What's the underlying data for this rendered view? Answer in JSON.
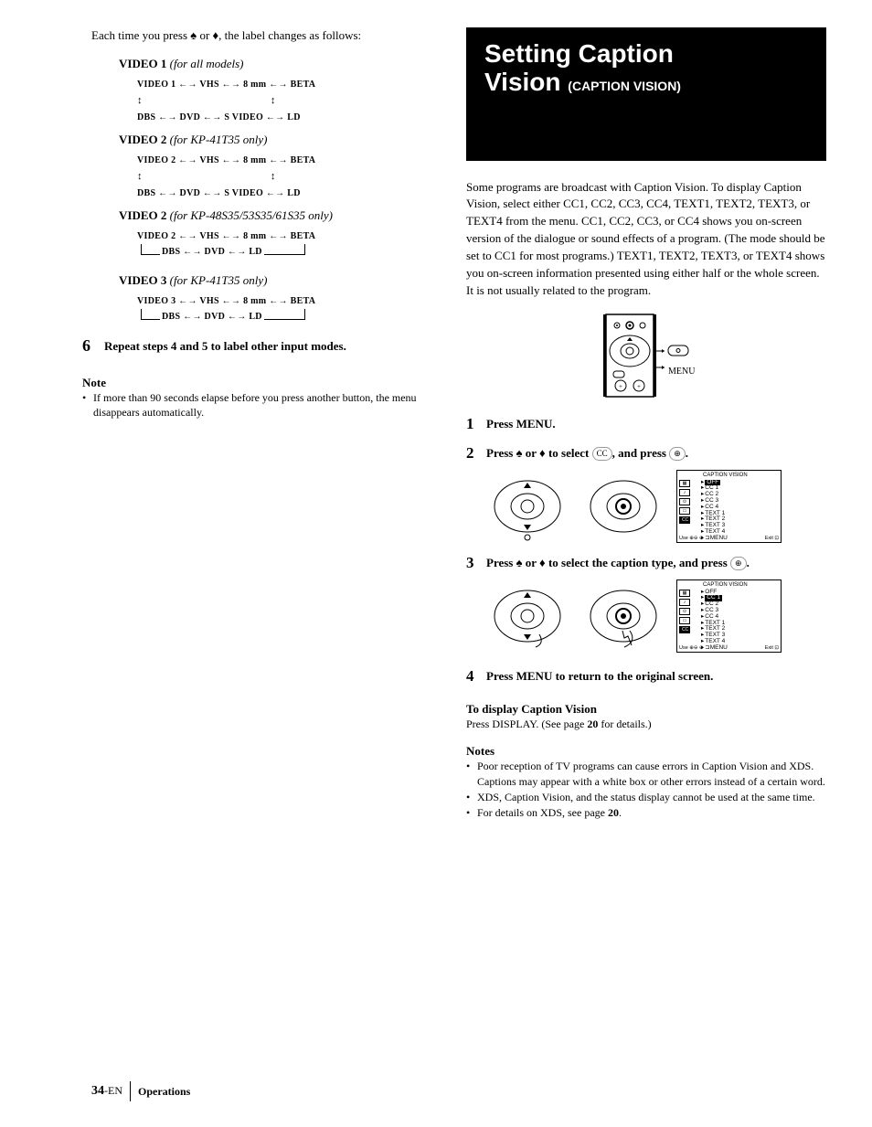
{
  "left": {
    "intro": "Each time you press ♠ or ♦, the label changes as follows:",
    "video1": {
      "heading": "VIDEO 1",
      "models": "(for all models)",
      "row1": "VIDEO 1 ←→ VHS ←→ 8 mm ←→ BETA",
      "row2": "DBS ←→ DVD ←→ S VIDEO ←→ LD"
    },
    "video2a": {
      "heading": "VIDEO 2",
      "models": "(for KP-41T35 only)",
      "row1": "VIDEO 2 ←→ VHS ←→ 8 mm ←→ BETA",
      "row2": "DBS ←→ DVD ←→ S VIDEO ←→ LD"
    },
    "video2b": {
      "heading": "VIDEO 2",
      "models": "(for KP-48S35/53S35/61S35 only)",
      "row1": "VIDEO 2 ←→ VHS ←→ 8 mm ←→ BETA",
      "row2": "DBS ←→ DVD ←→ LD"
    },
    "video3": {
      "heading": "VIDEO 3",
      "models": "(for KP-41T35 only)",
      "row1": "VIDEO 3 ←→ VHS ←→ 8 mm ←→ BETA",
      "row2": "DBS ←→ DVD ←→ LD"
    },
    "step6": {
      "num": "6",
      "text": "Repeat steps 4 and 5 to label other input modes."
    },
    "note_h": "Note",
    "note1": "If more than 90 seconds elapse before you press another button, the menu disappears automatically."
  },
  "right": {
    "title1": "Setting Caption",
    "title2a": "Vision",
    "title2b": "(CAPTION VISION)",
    "para": "Some programs are broadcast with Caption Vision. To display Caption Vision, select either CC1, CC2, CC3, CC4, TEXT1, TEXT2, TEXT3, or TEXT4 from the menu. CC1, CC2, CC3, or CC4 shows you on-screen version of the dialogue or sound effects of a program. (The mode should be set to CC1 for most programs.) TEXT1, TEXT2, TEXT3, or TEXT4 shows you on-screen information presented using either half or the whole screen. It is not usually related to the program.",
    "menu_label": "MENU",
    "step1": {
      "num": "1",
      "text": "Press MENU."
    },
    "step2": {
      "num": "2",
      "text_a": "Press ♠ or ♦ to select ",
      "cc": "CC",
      "text_b": ", and press ",
      "enter": "⊕",
      "text_c": "."
    },
    "step3": {
      "num": "3",
      "text_a": "Press ♠ or ♦ to select the caption type, and press ",
      "enter": "⊕",
      "text_b": "."
    },
    "step4": {
      "num": "4",
      "text": "Press MENU to return to the original screen."
    },
    "onscreen": {
      "title": "CAPTION VISION",
      "items": [
        "OFF",
        "CC 1",
        "CC 2",
        "CC 3",
        "CC 4",
        "TEXT 1",
        "TEXT 2",
        "TEXT 3",
        "TEXT 4",
        "⊐MENU"
      ],
      "use": "Use ⊕⊖ ⊕",
      "exit": "Exit ⊡"
    },
    "disp_h": "To display Caption Vision",
    "disp_p_a": "Press DISPLAY. (See page ",
    "disp_p_b": "20",
    "disp_p_c": " for details.)",
    "notes_h": "Notes",
    "notes": [
      "Poor reception of TV programs can cause errors in Caption Vision and XDS.\nCaptions may appear with a white box or other errors instead of a certain word.",
      "XDS, Caption Vision, and the status display cannot be used at the same time.",
      "For details on XDS, see page 20."
    ]
  },
  "footer": {
    "page": "34",
    "suffix": "-EN",
    "section": "Operations"
  }
}
